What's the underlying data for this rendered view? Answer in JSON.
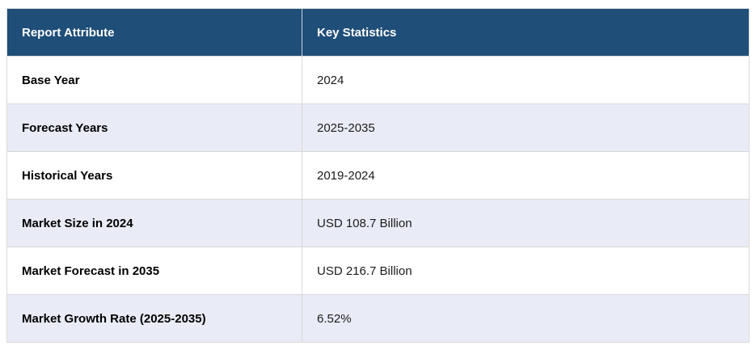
{
  "table": {
    "columns": [
      {
        "label": "Report Attribute"
      },
      {
        "label": "Key Statistics"
      }
    ],
    "rows": [
      {
        "attribute": "Base Year",
        "value": "2024"
      },
      {
        "attribute": "Forecast Years",
        "value": "2025-2035"
      },
      {
        "attribute": "Historical Years",
        "value": "2019-2024"
      },
      {
        "attribute": "Market Size in 2024",
        "value": "USD 108.7 Billion"
      },
      {
        "attribute": "Market Forecast in 2035",
        "value": "USD 216.7 Billion"
      },
      {
        "attribute": "Market Growth Rate (2025-2035)",
        "value": "6.52%"
      }
    ],
    "colors": {
      "header_bg": "#1f4e79",
      "header_text": "#ffffff",
      "row_bg": "#ffffff",
      "row_alt_bg": "#e9ebf6",
      "border": "#d9d9d9"
    }
  }
}
